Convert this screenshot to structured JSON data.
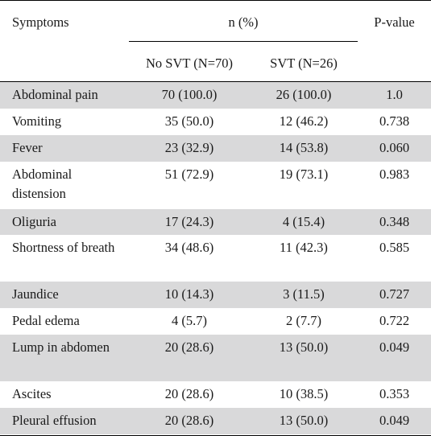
{
  "header": {
    "symptoms": "Symptoms",
    "n_percent": "n (%)",
    "p_value": "P-value",
    "no_svt": "No SVT (N=70)",
    "svt": "SVT (N=26)"
  },
  "rows": [
    {
      "symptom": "Abdominal pain",
      "no_svt": "70 (100.0)",
      "svt": "26 (100.0)",
      "p": "1.0"
    },
    {
      "symptom": "Vomiting",
      "no_svt": "35 (50.0)",
      "svt": "12 (46.2)",
      "p": "0.738"
    },
    {
      "symptom": "Fever",
      "no_svt": "23 (32.9)",
      "svt": "14 (53.8)",
      "p": "0.060"
    },
    {
      "symptom": "Abdominal distension",
      "no_svt": "51 (72.9)",
      "svt": "19 (73.1)",
      "p": "0.983"
    },
    {
      "symptom": "Oliguria",
      "no_svt": "17 (24.3)",
      "svt": "4 (15.4)",
      "p": "0.348"
    },
    {
      "symptom": "Shortness of breath",
      "no_svt": "34 (48.6)",
      "svt": "11 (42.3)",
      "p": "0.585"
    },
    {
      "symptom": "Jaundice",
      "no_svt": "10 (14.3)",
      "svt": "3 (11.5)",
      "p": "0.727"
    },
    {
      "symptom": "Pedal edema",
      "no_svt": "4 (5.7)",
      "svt": "2 (7.7)",
      "p": "0.722"
    },
    {
      "symptom": "Lump in abdomen",
      "no_svt": "20 (28.6)",
      "svt": "13 (50.0)",
      "p": "0.049"
    },
    {
      "symptom": "Ascites",
      "no_svt": "20 (28.6)",
      "svt": "10 (38.5)",
      "p": "0.353"
    },
    {
      "symptom": "Pleural effusion",
      "no_svt": "20 (28.6)",
      "svt": "13 (50.0)",
      "p": "0.049"
    }
  ],
  "colors": {
    "shaded_row": "#d9d9da",
    "rule": "#000000"
  }
}
